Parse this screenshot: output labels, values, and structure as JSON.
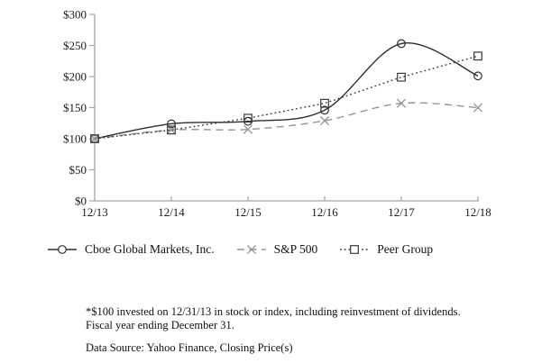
{
  "chart_data": {
    "type": "line",
    "title": "",
    "categories": [
      "12/13",
      "12/14",
      "12/15",
      "12/16",
      "12/17",
      "12/18"
    ],
    "series": [
      {
        "name": "Cboe Global Markets, Inc.",
        "slug": "cboe-global-markets",
        "values": [
          100,
          124,
          128,
          146,
          253,
          201
        ],
        "line": "solid",
        "marker": "circle",
        "color": "#2e2e2e",
        "smooth": true
      },
      {
        "name": "S&P 500",
        "slug": "sp-500",
        "values": [
          100,
          114,
          115,
          129,
          157,
          150
        ],
        "line": "dashed",
        "marker": "x",
        "color": "#949494",
        "smooth": true
      },
      {
        "name": "Peer Group",
        "slug": "peer-group",
        "values": [
          100,
          114,
          133,
          157,
          199,
          233
        ],
        "line": "dotted",
        "marker": "square",
        "color": "#3a3a3a",
        "smooth": false
      }
    ],
    "xlabel": "",
    "ylabel": "",
    "ylim": [
      0,
      300
    ],
    "y_tick_step": 50,
    "y_tick_labels": [
      "$0",
      "$50",
      "$100",
      "$150",
      "$200",
      "$250",
      "$300"
    ],
    "grid": false,
    "legend_position": "bottom",
    "axis_color": "#a3a3a3",
    "tick_label_color": "#1a1a1a"
  },
  "footnotes": {
    "line1": "*$100 invested on 12/31/13 in stock or index, including reinvestment of dividends.",
    "line2": "Fiscal year ending December 31.",
    "data_source": "Data Source: Yahoo Finance, Closing Price(s)"
  }
}
